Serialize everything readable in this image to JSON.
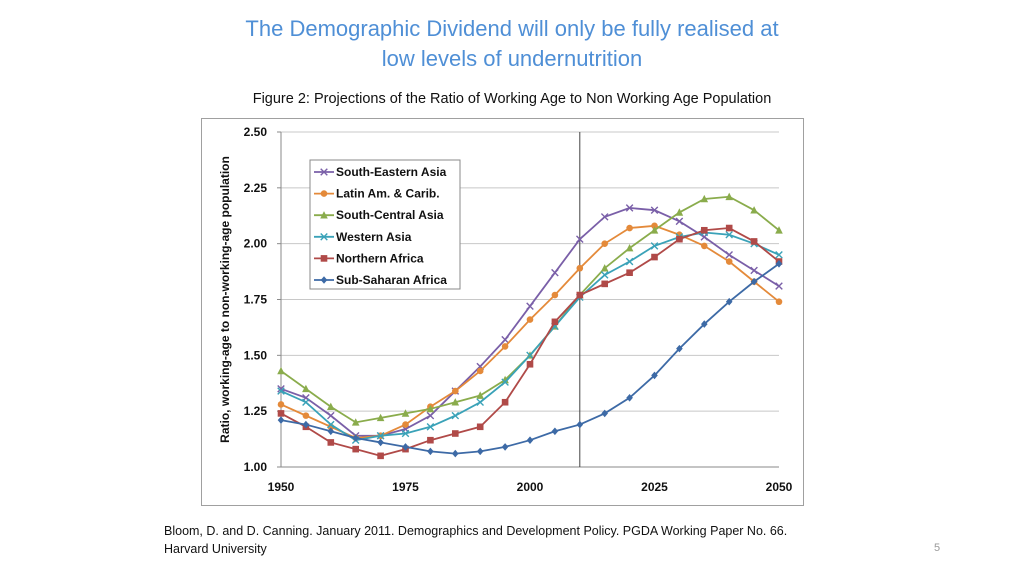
{
  "slide": {
    "title_line1": "The Demographic Dividend will only be fully realised at",
    "title_line2": "low levels of undernutrition",
    "figure_caption": "Figure 2: Projections of the Ratio of Working Age to Non Working Age Population",
    "citation_line1": "Bloom, D. and D. Canning. January 2011. Demographics and Development Policy. PGDA Working Paper No. 66.",
    "citation_line2": "Harvard University",
    "page_number": "5"
  },
  "chart_data": {
    "type": "line",
    "title": "",
    "xlabel": "",
    "ylabel": "Ratio, working-age to non-working-age population",
    "xlim": [
      1950,
      2050
    ],
    "ylim": [
      1.0,
      2.5
    ],
    "x_ticks": [
      1950,
      1975,
      2000,
      2025,
      2050
    ],
    "x_tick_labels": [
      "1950",
      "1975",
      "2000",
      "2025",
      "2050"
    ],
    "y_ticks": [
      1.0,
      1.25,
      1.5,
      1.75,
      2.0,
      2.25,
      2.5
    ],
    "y_tick_labels": [
      "1.00",
      "1.25",
      "1.50",
      "1.75",
      "2.00",
      "2.25",
      "2.50"
    ],
    "grid": "horizontal",
    "vertical_reference_line_x": 2010,
    "legend_position": "top-left",
    "x": [
      1950,
      1955,
      1960,
      1965,
      1970,
      1975,
      1980,
      1985,
      1990,
      1995,
      2000,
      2005,
      2010,
      2015,
      2020,
      2025,
      2030,
      2035,
      2040,
      2045,
      2050
    ],
    "series": [
      {
        "name": "South-Eastern Asia",
        "color": "#7a5fa8",
        "marker": "x",
        "values": [
          1.35,
          1.31,
          1.23,
          1.14,
          1.14,
          1.17,
          1.23,
          1.34,
          1.45,
          1.57,
          1.72,
          1.87,
          2.02,
          2.12,
          2.16,
          2.15,
          2.1,
          2.03,
          1.95,
          1.88,
          1.81
        ]
      },
      {
        "name": "Latin Am. & Carib.",
        "color": "#e48a3a",
        "marker": "circle",
        "values": [
          1.28,
          1.23,
          1.18,
          1.13,
          1.14,
          1.19,
          1.27,
          1.34,
          1.43,
          1.54,
          1.66,
          1.77,
          1.89,
          2.0,
          2.07,
          2.08,
          2.04,
          1.99,
          1.92,
          1.83,
          1.74
        ]
      },
      {
        "name": "South-Central Asia",
        "color": "#8aac4c",
        "marker": "triangle",
        "values": [
          1.43,
          1.35,
          1.27,
          1.2,
          1.22,
          1.24,
          1.26,
          1.29,
          1.32,
          1.39,
          1.5,
          1.63,
          1.77,
          1.89,
          1.98,
          2.06,
          2.14,
          2.2,
          2.21,
          2.15,
          2.06
        ]
      },
      {
        "name": "Western Asia",
        "color": "#3aa2b8",
        "marker": "x",
        "values": [
          1.34,
          1.29,
          1.19,
          1.12,
          1.14,
          1.15,
          1.18,
          1.23,
          1.29,
          1.38,
          1.5,
          1.63,
          1.76,
          1.86,
          1.92,
          1.99,
          2.03,
          2.05,
          2.04,
          2.0,
          1.95
        ]
      },
      {
        "name": "Northern Africa",
        "color": "#b04a48",
        "marker": "square",
        "values": [
          1.24,
          1.18,
          1.11,
          1.08,
          1.05,
          1.08,
          1.12,
          1.15,
          1.18,
          1.29,
          1.46,
          1.65,
          1.77,
          1.82,
          1.87,
          1.94,
          2.02,
          2.06,
          2.07,
          2.01,
          1.92
        ]
      },
      {
        "name": "Sub-Saharan Africa",
        "color": "#3d6aa6",
        "marker": "diamond",
        "values": [
          1.21,
          1.19,
          1.16,
          1.13,
          1.11,
          1.09,
          1.07,
          1.06,
          1.07,
          1.09,
          1.12,
          1.16,
          1.19,
          1.24,
          1.31,
          1.41,
          1.53,
          1.64,
          1.74,
          1.83,
          1.91
        ]
      }
    ]
  }
}
